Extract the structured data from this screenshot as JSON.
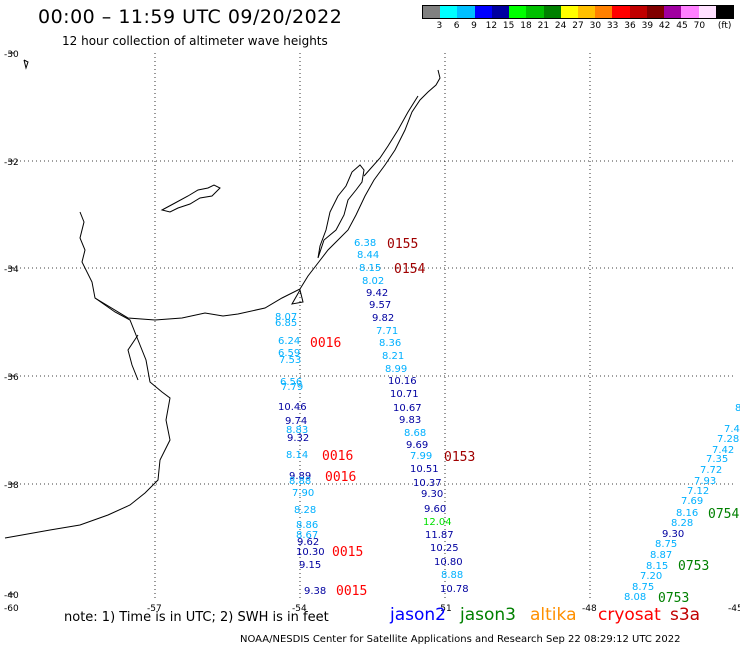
{
  "title": "00:00 – 11:59 UTC 09/20/2022",
  "subtitle": "12 hour collection of altimeter wave heights",
  "colorbar": {
    "colors": [
      "#808080",
      "#00ffff",
      "#00c0ff",
      "#0000ff",
      "#0000a0",
      "#00ff00",
      "#00c000",
      "#008000",
      "#ffff00",
      "#ffc000",
      "#ff8000",
      "#ff0000",
      "#c00000",
      "#800000",
      "#a000a0",
      "#ff80ff",
      "#ffe0ff",
      "#000000"
    ],
    "labels": [
      "3",
      "6",
      "9",
      "12",
      "15",
      "18",
      "21",
      "24",
      "27",
      "30",
      "33",
      "36",
      "39",
      "42",
      "45",
      "70",
      "(ft)"
    ]
  },
  "axes": {
    "lat_labels": [
      "-30",
      "-32",
      "-34",
      "-36",
      "-38",
      "-40"
    ],
    "lon_labels": [
      "-60",
      "-57",
      "-54",
      "-51",
      "-48",
      "-45"
    ]
  },
  "wave_heights": [
    {
      "v": "6.38",
      "c": "#00b0ff"
    },
    {
      "v": "8.44",
      "c": "#00b0ff"
    },
    {
      "v": "8.15",
      "c": "#00b0ff"
    },
    {
      "v": "8.02",
      "c": "#00b0ff"
    },
    {
      "v": "9.42",
      "c": "#0000a0"
    },
    {
      "v": "9.57",
      "c": "#0000a0"
    },
    {
      "v": "9.82",
      "c": "#0000a0"
    },
    {
      "v": "7.71",
      "c": "#00b0ff"
    },
    {
      "v": "8.36",
      "c": "#00b0ff"
    },
    {
      "v": "8.21",
      "c": "#00b0ff"
    },
    {
      "v": "8.99",
      "c": "#00b0ff"
    },
    {
      "v": "10.16",
      "c": "#0000a0"
    },
    {
      "v": "10.71",
      "c": "#0000a0"
    },
    {
      "v": "10.67",
      "c": "#0000a0"
    },
    {
      "v": "9.83",
      "c": "#0000a0"
    },
    {
      "v": "8.68",
      "c": "#00b0ff"
    },
    {
      "v": "9.69",
      "c": "#0000a0"
    },
    {
      "v": "7.99",
      "c": "#00b0ff"
    },
    {
      "v": "10.51",
      "c": "#0000a0"
    },
    {
      "v": "10.37",
      "c": "#0000a0"
    },
    {
      "v": "9.30",
      "c": "#0000a0"
    },
    {
      "v": "9.60",
      "c": "#0000a0"
    },
    {
      "v": "12.04",
      "c": "#00e000"
    },
    {
      "v": "11.87",
      "c": "#0000a0"
    },
    {
      "v": "10.25",
      "c": "#0000a0"
    },
    {
      "v": "10.80",
      "c": "#0000a0"
    },
    {
      "v": "8.88",
      "c": "#00b0ff"
    },
    {
      "v": "10.78",
      "c": "#0000a0"
    },
    {
      "v": "8.07",
      "c": "#00b0ff"
    },
    {
      "v": "6.85",
      "c": "#00b0ff"
    },
    {
      "v": "6.24",
      "c": "#00b0ff"
    },
    {
      "v": "6.59",
      "c": "#00b0ff"
    },
    {
      "v": "7.53",
      "c": "#00b0ff"
    },
    {
      "v": "6.56",
      "c": "#00b0ff"
    },
    {
      "v": "7.79",
      "c": "#00b0ff"
    },
    {
      "v": "10.46",
      "c": "#0000a0"
    },
    {
      "v": "9.74",
      "c": "#0000a0"
    },
    {
      "v": "8.83",
      "c": "#00b0ff"
    },
    {
      "v": "9.32",
      "c": "#0000a0"
    },
    {
      "v": "8.14",
      "c": "#00b0ff"
    },
    {
      "v": "9.89",
      "c": "#0000a0"
    },
    {
      "v": "8.88",
      "c": "#00b0ff"
    },
    {
      "v": "7.90",
      "c": "#00b0ff"
    },
    {
      "v": "8.28",
      "c": "#00b0ff"
    },
    {
      "v": "8.86",
      "c": "#00b0ff"
    },
    {
      "v": "8.67",
      "c": "#00b0ff"
    },
    {
      "v": "9.62",
      "c": "#0000a0"
    },
    {
      "v": "10.30",
      "c": "#0000a0"
    },
    {
      "v": "9.15",
      "c": "#0000a0"
    },
    {
      "v": "9.38",
      "c": "#0000a0"
    },
    {
      "v": "8",
      "c": "#00b0ff"
    },
    {
      "v": "7.4",
      "c": "#00b0ff"
    },
    {
      "v": "7.28",
      "c": "#00b0ff"
    },
    {
      "v": "7.42",
      "c": "#00b0ff"
    },
    {
      "v": "7.35",
      "c": "#00b0ff"
    },
    {
      "v": "7.72",
      "c": "#00b0ff"
    },
    {
      "v": "7.93",
      "c": "#00b0ff"
    },
    {
      "v": "7.12",
      "c": "#00b0ff"
    },
    {
      "v": "7.69",
      "c": "#00b0ff"
    },
    {
      "v": "8.16",
      "c": "#00b0ff"
    },
    {
      "v": "8.28",
      "c": "#00b0ff"
    },
    {
      "v": "9.30",
      "c": "#0000a0"
    },
    {
      "v": "8.75",
      "c": "#00b0ff"
    },
    {
      "v": "8.87",
      "c": "#00b0ff"
    },
    {
      "v": "8.15",
      "c": "#00b0ff"
    },
    {
      "v": "7.20",
      "c": "#00b0ff"
    },
    {
      "v": "8.75",
      "c": "#00b0ff"
    },
    {
      "v": "8.08",
      "c": "#00b0ff"
    }
  ],
  "pass_labels": [
    {
      "t": "0155",
      "c": "#a00000"
    },
    {
      "t": "0154",
      "c": "#a00000"
    },
    {
      "t": "0016",
      "c": "#ff0000"
    },
    {
      "t": "0016",
      "c": "#ff0000"
    },
    {
      "t": "0016",
      "c": "#ff0000"
    },
    {
      "t": "0153",
      "c": "#a00000"
    },
    {
      "t": "0015",
      "c": "#ff0000"
    },
    {
      "t": "0015",
      "c": "#ff0000"
    },
    {
      "t": "0754",
      "c": "#008000"
    },
    {
      "t": "0753",
      "c": "#008000"
    },
    {
      "t": "0753",
      "c": "#008000"
    }
  ],
  "legend": {
    "note": "note: 1) Time is in UTC; 2) SWH is in feet",
    "satellites": [
      {
        "name": "jason2",
        "color": "#0000ff"
      },
      {
        "name": "jason3",
        "color": "#008000"
      },
      {
        "name": "altika",
        "color": "#ff9000"
      },
      {
        "name": "cryosat",
        "color": "#ff0000"
      },
      {
        "name": "s3a",
        "color": "#c00000"
      }
    ]
  },
  "footer": "NOAA/NESDIS Center for Satellite Applications and Research   Sep 22 08:29:12 UTC 2022"
}
